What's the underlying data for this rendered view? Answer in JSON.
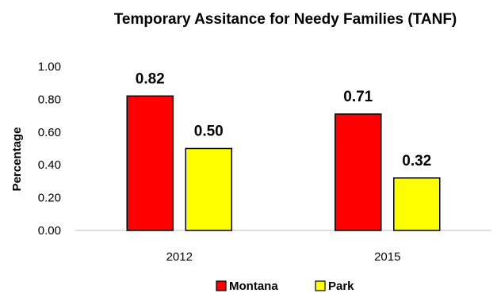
{
  "chart_data": {
    "type": "bar",
    "title": "Temporary Assitance for Needy Families (TANF)",
    "xlabel": "",
    "ylabel": "Percentage",
    "categories": [
      "2012",
      "2015"
    ],
    "series": [
      {
        "name": "Montana",
        "values": [
          0.82,
          0.71
        ],
        "labels": [
          "0.82",
          "0.71"
        ],
        "color": "#ff0000"
      },
      {
        "name": "Park",
        "values": [
          0.5,
          0.32
        ],
        "labels": [
          "0.50",
          "0.32"
        ],
        "color": "#ffff00"
      }
    ],
    "ylim": [
      0,
      1.0
    ],
    "yticks": [
      0,
      0.2,
      0.4,
      0.6,
      0.8,
      1.0
    ],
    "ytick_labels": [
      "0.00",
      "0.20",
      "0.40",
      "0.60",
      "0.80",
      "1.00"
    ],
    "grid": false,
    "legend": "bottom-center"
  }
}
